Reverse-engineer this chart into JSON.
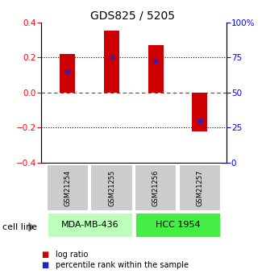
{
  "title": "GDS825 / 5205",
  "samples": [
    "GSM21254",
    "GSM21255",
    "GSM21256",
    "GSM21257"
  ],
  "log_ratios": [
    0.22,
    0.35,
    0.27,
    -0.22
  ],
  "percentile_ranks": [
    0.65,
    0.75,
    0.72,
    0.3
  ],
  "bar_color": "#cc0000",
  "blue_color": "#2222cc",
  "ylim": [
    -0.4,
    0.4
  ],
  "yticks_left": [
    -0.4,
    -0.2,
    0.0,
    0.2,
    0.4
  ],
  "yticks_right": [
    0,
    25,
    50,
    75,
    100
  ],
  "cell_lines": [
    {
      "label": "MDA-MB-436",
      "samples": [
        0,
        1
      ],
      "color": "#bbffbb"
    },
    {
      "label": "HCC 1954",
      "samples": [
        2,
        3
      ],
      "color": "#44ee44"
    }
  ],
  "sample_box_color": "#cccccc",
  "bar_width": 0.35,
  "legend_red_label": "log ratio",
  "legend_blue_label": "percentile rank within the sample",
  "cell_line_label": "cell line",
  "background_color": "#ffffff",
  "title_fontsize": 10,
  "tick_fontsize": 7.5,
  "sample_fontsize": 6,
  "cell_fontsize": 8
}
